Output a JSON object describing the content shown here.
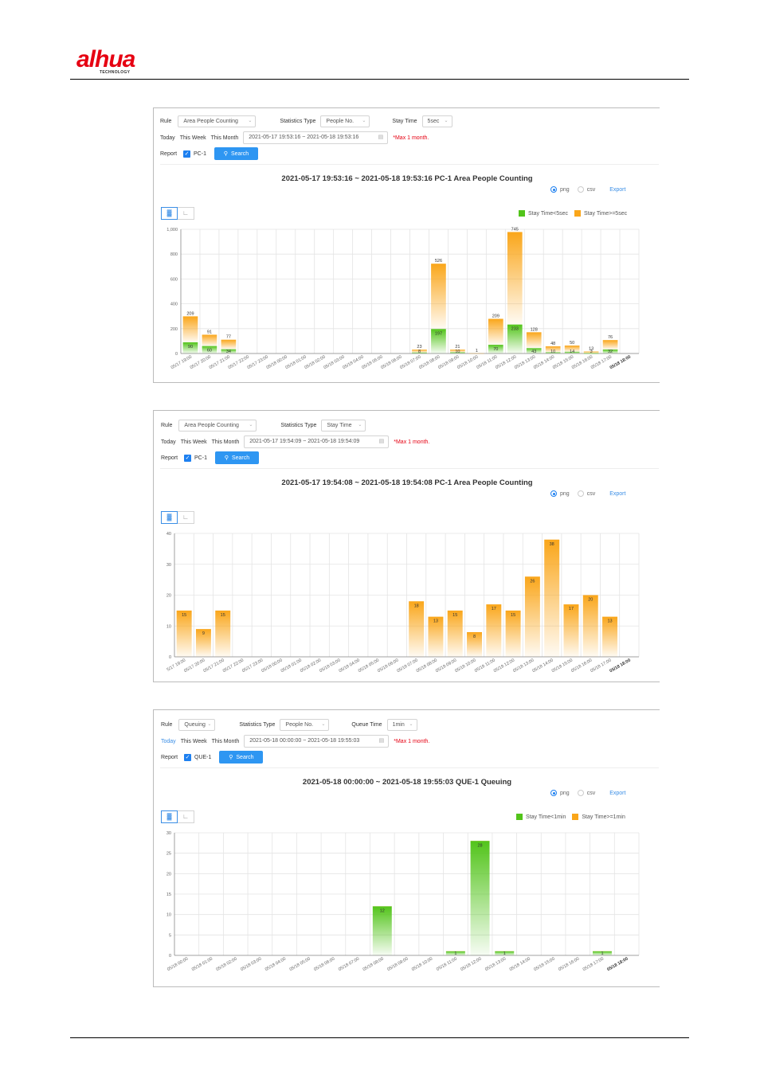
{
  "brand": {
    "name": "alhua",
    "sub": "TECHNOLOGY"
  },
  "colors": {
    "green": "#52c41a",
    "orange": "#faa61a",
    "accent": "#2e96f2",
    "warn": "#e60012"
  },
  "panels": [
    {
      "rule_label": "Rule",
      "rule_value": "Area People Counting",
      "stat_label": "Statistics Type",
      "stat_value": "People No.",
      "extra_label": "Stay Time",
      "extra_value": "5sec",
      "today": "Today",
      "this_week": "This Week",
      "this_month": "This Month",
      "date_range": "2021-05-17 19:53:16 ~ 2021-05-18 19:53:16",
      "max_note": "*Max 1 month.",
      "report_label": "Report",
      "report_channel": "PC-1",
      "search_label": "Search",
      "title": "2021-05-17 19:53:16 ~ 2021-05-18 19:53:16  PC-1  Area People Counting",
      "png": "png",
      "csv": "csv",
      "export": "Export",
      "legend": [
        "Stay Time<5sec",
        "Stay Time>=5sec"
      ]
    },
    {
      "rule_label": "Rule",
      "rule_value": "Area People Counting",
      "stat_label": "Statistics Type",
      "stat_value": "Stay Time",
      "today": "Today",
      "this_week": "This Week",
      "this_month": "This Month",
      "date_range": "2021-05-17 19:54:09 ~ 2021-05-18 19:54:09",
      "max_note": "*Max 1 month.",
      "report_label": "Report",
      "report_channel": "PC-1",
      "search_label": "Search",
      "title": "2021-05-17 19:54:08 ~ 2021-05-18 19:54:08  PC-1  Area People Counting",
      "png": "png",
      "csv": "csv",
      "export": "Export"
    },
    {
      "rule_label": "Rule",
      "rule_value": "Queuing",
      "stat_label": "Statistics Type",
      "stat_value": "People No.",
      "extra_label": "Queue Time",
      "extra_value": "1min",
      "today": "Today",
      "this_week": "This Week",
      "this_month": "This Month",
      "date_range": "2021-05-18 00:00:00 ~ 2021-05-18 19:55:03",
      "max_note": "*Max 1 month.",
      "report_label": "Report",
      "report_channel": "QUE-1",
      "search_label": "Search",
      "title": "2021-05-18 00:00:00 ~ 2021-05-18 19:55:03  QUE-1  Queuing",
      "png": "png",
      "csv": "csv",
      "export": "Export",
      "legend": [
        "Stay Time<1min",
        "Stay Time>=1min"
      ]
    }
  ],
  "chart_data": [
    {
      "type": "bar",
      "stacked": true,
      "ylim": [
        0,
        1000
      ],
      "yticks": [
        "0",
        "200",
        "400",
        "600",
        "800",
        "1,000"
      ],
      "categories": [
        "05/17 19:00",
        "05/17 20:00",
        "05/17 21:00",
        "05/17 22:00",
        "05/17 23:00",
        "05/18 00:00",
        "05/18 01:00",
        "05/18 02:00",
        "05/18 03:00",
        "05/18 04:00",
        "05/18 05:00",
        "05/18 06:00",
        "05/18 07:00",
        "05/18 08:00",
        "05/18 09:00",
        "05/18 10:00",
        "05/18 11:00",
        "05/18 12:00",
        "05/18 13:00",
        "05/18 14:00",
        "05/18 15:00",
        "05/18 16:00",
        "05/18 17:00",
        "05/18 18:00"
      ],
      "series": [
        {
          "name": "Stay Time<5sec",
          "values": [
            90,
            60,
            34,
            0,
            0,
            0,
            0,
            0,
            0,
            0,
            0,
            0,
            8,
            197,
            10,
            0,
            70,
            233,
            43,
            10,
            14,
            3,
            32,
            0
          ]
        },
        {
          "name": "Stay Time>=5sec",
          "values": [
            209,
            91,
            77,
            0,
            0,
            0,
            0,
            0,
            0,
            0,
            0,
            0,
            23,
            526,
            21,
            1,
            209,
            745,
            128,
            48,
            50,
            13,
            76,
            0
          ]
        }
      ]
    },
    {
      "type": "bar",
      "ylim": [
        0,
        40
      ],
      "yticks": [
        "0",
        "10",
        "20",
        "30",
        "40"
      ],
      "categories": [
        "5/17 19:00",
        "05/17 20:00",
        "05/17 21:00",
        "05/17 22:00",
        "05/17 23:00",
        "05/18 00:00",
        "05/18 01:00",
        "05/18 02:00",
        "05/18 03:00",
        "05/18 04:00",
        "05/18 05:00",
        "05/18 06:00",
        "05/18 07:00",
        "05/18 08:00",
        "05/18 09:00",
        "05/18 10:00",
        "05/18 11:00",
        "05/18 12:00",
        "05/18 13:00",
        "05/18 14:00",
        "05/18 15:00",
        "05/18 16:00",
        "05/18 17:00",
        "05/18 18:00"
      ],
      "series": [
        {
          "values": [
            15,
            9,
            15,
            0,
            0,
            0,
            0,
            0,
            0,
            0,
            0,
            0,
            18,
            13,
            15,
            8,
            17,
            15,
            26,
            38,
            17,
            20,
            13,
            0
          ]
        }
      ]
    },
    {
      "type": "bar",
      "stacked": true,
      "ylim": [
        0,
        30
      ],
      "yticks": [
        "0",
        "5",
        "10",
        "15",
        "20",
        "25",
        "30"
      ],
      "categories": [
        "05/18 00:00",
        "05/18 01:00",
        "05/18 02:00",
        "05/18 03:00",
        "05/18 04:00",
        "05/18 05:00",
        "05/18 06:00",
        "05/18 07:00",
        "05/18 08:00",
        "05/18 09:00",
        "05/18 10:00",
        "05/18 11:00",
        "05/18 12:00",
        "05/18 13:00",
        "05/18 14:00",
        "05/18 15:00",
        "05/18 16:00",
        "05/18 17:00",
        "05/18 18:00"
      ],
      "series": [
        {
          "name": "Stay Time<1min",
          "values": [
            0,
            0,
            0,
            0,
            0,
            0,
            0,
            0,
            12,
            0,
            0,
            1,
            28,
            1,
            0,
            0,
            0,
            1,
            0
          ]
        },
        {
          "name": "Stay Time>=1min",
          "values": [
            0,
            0,
            0,
            0,
            0,
            0,
            0,
            0,
            0,
            0,
            0,
            0,
            0,
            0,
            0,
            0,
            0,
            0,
            0
          ]
        }
      ]
    }
  ]
}
